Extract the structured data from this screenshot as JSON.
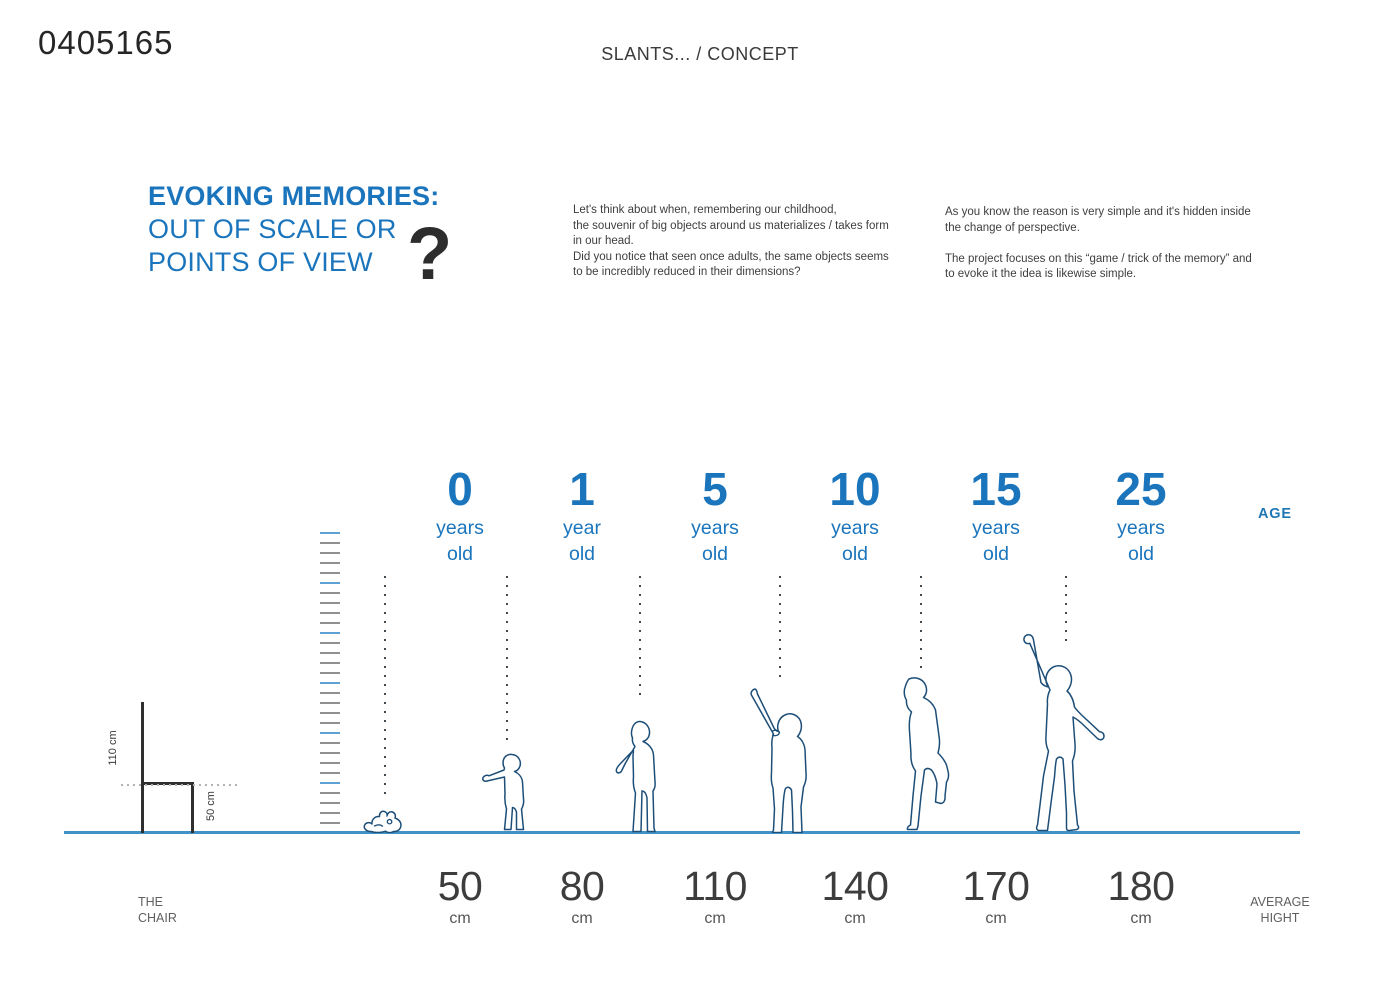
{
  "header": {
    "code": "0405165",
    "center_title": "SLANTS... / CONCEPT"
  },
  "intro": {
    "title_line1": "EVOKING MEMORIES:",
    "title_line2": "OUT OF SCALE OR",
    "title_line3": "POINTS OF VIEW",
    "question_mark": "?",
    "paragraph1": "Let's think about when, remembering our childhood,\nthe souvenir of big objects around us materializes / takes form\nin our head.\nDid you notice that seen once adults, the same objects seems\nto be incredibly reduced in their dimensions?",
    "paragraph2": "As you know the reason is very simple and it's hidden inside\nthe change of perspective.\n\nThe project focuses on this “game / trick of the memory” and\nto evoke it the idea is likewise simple."
  },
  "diagram": {
    "age_caption": "AGE",
    "average_height_caption": "AVERAGE\nHIGHT",
    "chair_caption": "THE\nCHAIR",
    "chair": {
      "back_height_label": "110 cm",
      "seat_height_label": "50 cm"
    },
    "ruler": {
      "tick_count": 30,
      "blue_every": 5
    },
    "columns": [
      {
        "age": "0",
        "age_word1": "years",
        "age_word2": "old",
        "height": "50",
        "unit": "cm",
        "figure": "baby-lying"
      },
      {
        "age": "1",
        "age_word1": "year",
        "age_word2": "old",
        "height": "80",
        "unit": "cm",
        "figure": "toddler-standing"
      },
      {
        "age": "5",
        "age_word1": "years",
        "age_word2": "old",
        "height": "110",
        "unit": "cm",
        "figure": "child-standing"
      },
      {
        "age": "10",
        "age_word1": "years",
        "age_word2": "old",
        "height": "140",
        "unit": "cm",
        "figure": "child-reaching"
      },
      {
        "age": "15",
        "age_word1": "years",
        "age_word2": "old",
        "height": "170",
        "unit": "cm",
        "figure": "teen-walking"
      },
      {
        "age": "25",
        "age_word1": "years",
        "age_word2": "old",
        "height": "180",
        "unit": "cm",
        "figure": "adult-reaching"
      }
    ]
  },
  "chart_data": {
    "type": "table",
    "title": "EVOKING MEMORIES: OUT OF SCALE OR POINTS OF VIEW?",
    "x": [
      0,
      1,
      5,
      10,
      15,
      25
    ],
    "xlabel": "AGE (years old)",
    "y": [
      50,
      80,
      110,
      140,
      170,
      180
    ],
    "ylabel": "AVERAGE HIGHT (cm)",
    "reference_object": {
      "name": "THE CHAIR",
      "back_height_cm": 110,
      "seat_height_cm": 50
    }
  },
  "colors": {
    "accent_blue": "#1b75bc",
    "ground_blue": "#4191c6",
    "figure_outline": "#1d4e78",
    "ruler_gray": "#909090",
    "ruler_blue": "#5ea2d4",
    "dark_text": "#3e3e3e",
    "gray_caption": "#5f5f5f"
  }
}
